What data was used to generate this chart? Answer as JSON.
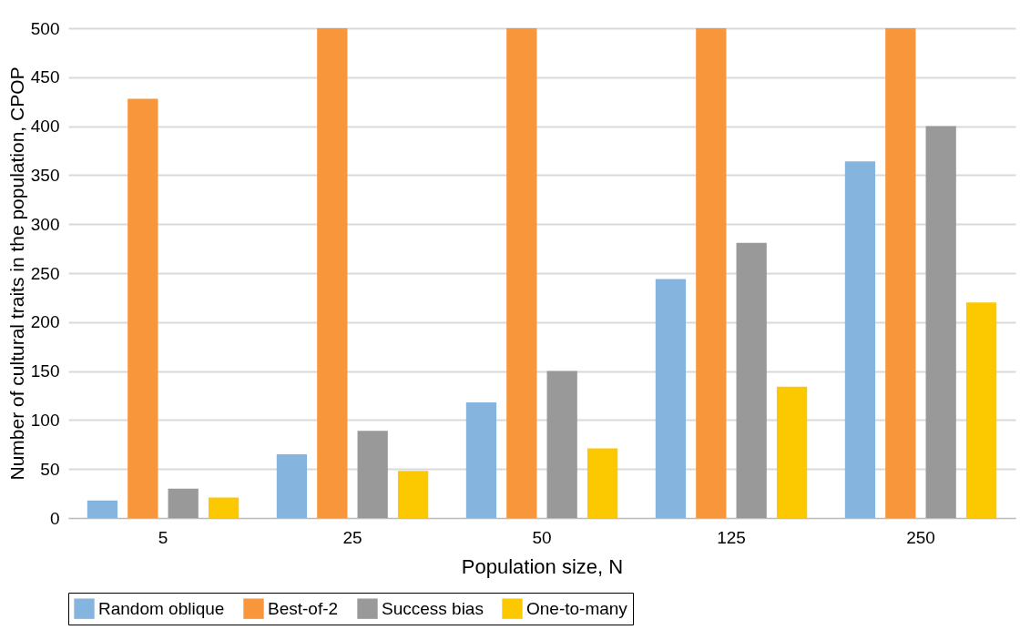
{
  "chart_data": {
    "type": "bar",
    "xlabel": "Population size, N",
    "ylabel": "Number of cultural traits in the population, CPOP",
    "categories": [
      "5",
      "25",
      "50",
      "125",
      "250"
    ],
    "series": [
      {
        "name": "Random oblique",
        "color": "#85b4de",
        "values": [
          18,
          65,
          118,
          244,
          364
        ]
      },
      {
        "name": "Best-of-2",
        "color": "#f7963a",
        "values": [
          428,
          500,
          500,
          500,
          500
        ]
      },
      {
        "name": "Success bias",
        "color": "#999999",
        "values": [
          30,
          89,
          150,
          281,
          400
        ]
      },
      {
        "name": "One-to-many",
        "color": "#fcc800",
        "values": [
          21,
          48,
          71,
          134,
          220
        ]
      }
    ],
    "ylim": [
      0,
      500
    ],
    "yticks": [
      0,
      50,
      100,
      150,
      200,
      250,
      300,
      350,
      400,
      450,
      500
    ],
    "grid": "y",
    "legend": "bottom"
  }
}
